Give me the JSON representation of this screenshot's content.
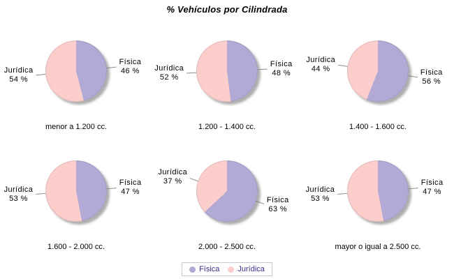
{
  "title": "% Vehículos por Cilindrada",
  "colors": {
    "fisica": "#B3A9D5",
    "juridica": "#FBCDCB",
    "legend_text": "#432A8E",
    "legend_border": "#C8C8C8",
    "leader_line": "#8C8C8C",
    "label_text": "#000000",
    "shadow": "#8F8F8F",
    "background": "#FFFFFF"
  },
  "legend": {
    "items": [
      {
        "label": "Física",
        "color": "#B3A9D5"
      },
      {
        "label": "Jurídica",
        "color": "#FBCDCB"
      }
    ]
  },
  "chart_data": [
    {
      "type": "pie",
      "title": "menor a 1.200 cc.",
      "labels": [
        "Física",
        "Jurídica"
      ],
      "values": [
        46,
        54
      ],
      "unit": "%",
      "colors": [
        "#B3A9D5",
        "#FBCDCB"
      ],
      "start_angle": "12-oclock",
      "direction": "clockwise",
      "legend_position": "bottom"
    },
    {
      "type": "pie",
      "title": "1.200 - 1.400 cc.",
      "labels": [
        "Física",
        "Jurídica"
      ],
      "values": [
        48,
        52
      ],
      "unit": "%",
      "colors": [
        "#B3A9D5",
        "#FBCDCB"
      ],
      "start_angle": "12-oclock",
      "direction": "clockwise",
      "legend_position": "bottom"
    },
    {
      "type": "pie",
      "title": "1.400 - 1.600 cc.",
      "labels": [
        "Física",
        "Jurídica"
      ],
      "values": [
        56,
        44
      ],
      "unit": "%",
      "colors": [
        "#B3A9D5",
        "#FBCDCB"
      ],
      "start_angle": "12-oclock",
      "direction": "clockwise",
      "legend_position": "bottom"
    },
    {
      "type": "pie",
      "title": "1.600 - 2.000 cc.",
      "labels": [
        "Física",
        "Jurídica"
      ],
      "values": [
        47,
        53
      ],
      "unit": "%",
      "colors": [
        "#B3A9D5",
        "#FBCDCB"
      ],
      "start_angle": "12-oclock",
      "direction": "clockwise",
      "legend_position": "bottom"
    },
    {
      "type": "pie",
      "title": "2.000 - 2.500 cc.",
      "labels": [
        "Física",
        "Jurídica"
      ],
      "values": [
        63,
        37
      ],
      "unit": "%",
      "colors": [
        "#B3A9D5",
        "#FBCDCB"
      ],
      "start_angle": "12-oclock",
      "direction": "clockwise",
      "legend_position": "bottom"
    },
    {
      "type": "pie",
      "title": "mayor o igual a 2.500 cc.",
      "labels": [
        "Física",
        "Jurídica"
      ],
      "values": [
        47,
        53
      ],
      "unit": "%",
      "colors": [
        "#B3A9D5",
        "#FBCDCB"
      ],
      "start_angle": "12-oclock",
      "direction": "clockwise",
      "legend_position": "bottom"
    }
  ]
}
